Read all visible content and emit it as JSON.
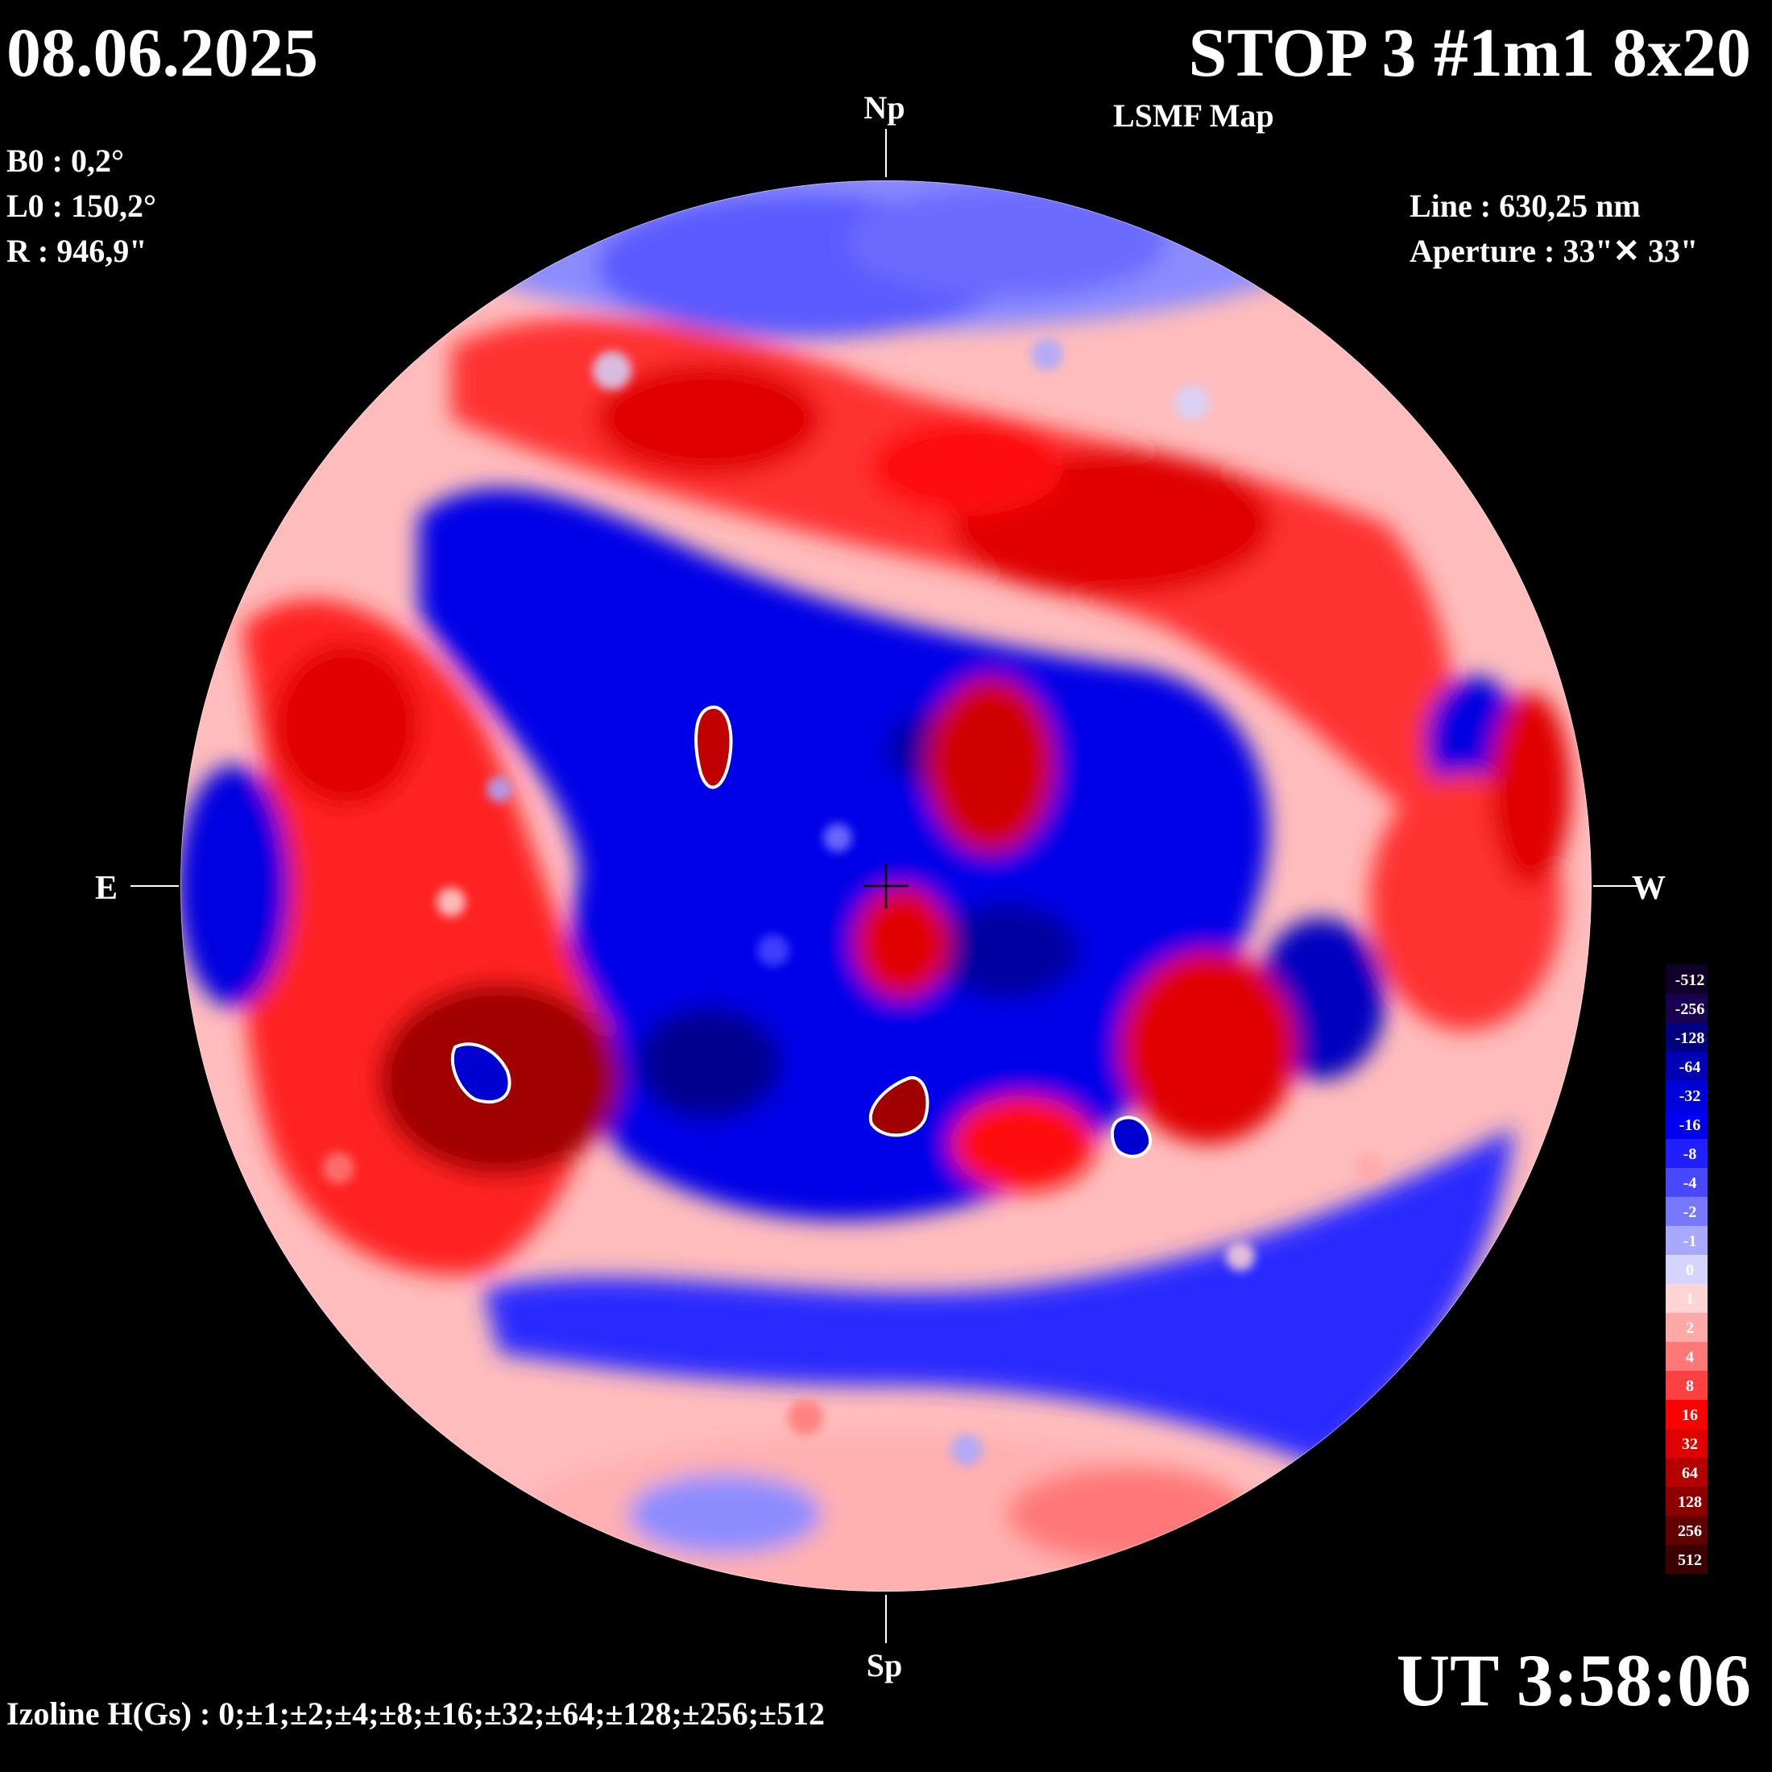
{
  "header": {
    "date": "08.06.2025",
    "title": "STOP 3 #1m1 8x20",
    "subtitle": "LSMF  Map"
  },
  "params": {
    "b0": "B0 : 0,2°",
    "l0": "L0 : 150,2°",
    "radius": "R  : 946,9\"",
    "line": "Line :  630,25 nm",
    "aperture": "Aperture : 33\"✕ 33\""
  },
  "axes": {
    "north": "Np",
    "south": "Sp",
    "east": "E",
    "west": "W"
  },
  "footer": {
    "time": "UT 3:58:06",
    "izoline": "Izoline H(Gs) : 0;±1;±2;±4;±8;±16;±32;±64;±128;±256;±512"
  },
  "color_scale": {
    "labels": [
      "-512",
      "-256",
      "-128",
      "-64",
      "-32",
      "-16",
      "-8",
      "-4",
      "-2",
      "-1",
      "0",
      "1",
      "2",
      "4",
      "8",
      "16",
      "32",
      "64",
      "128",
      "256",
      "512"
    ],
    "colors": [
      "#10002a",
      "#1a0050",
      "#000080",
      "#0000b4",
      "#0000d8",
      "#0000f0",
      "#2020ff",
      "#4848ff",
      "#7878ff",
      "#a8a8ff",
      "#d4d4ff",
      "#ffd4d4",
      "#ffa8a8",
      "#ff7878",
      "#ff4040",
      "#ff0000",
      "#e00000",
      "#b40000",
      "#8c0000",
      "#600000",
      "#3c0000"
    ]
  },
  "colors": {
    "background": "#000000",
    "positive": "#ff0000",
    "negative": "#0000ff",
    "contour": "#ffffff"
  }
}
